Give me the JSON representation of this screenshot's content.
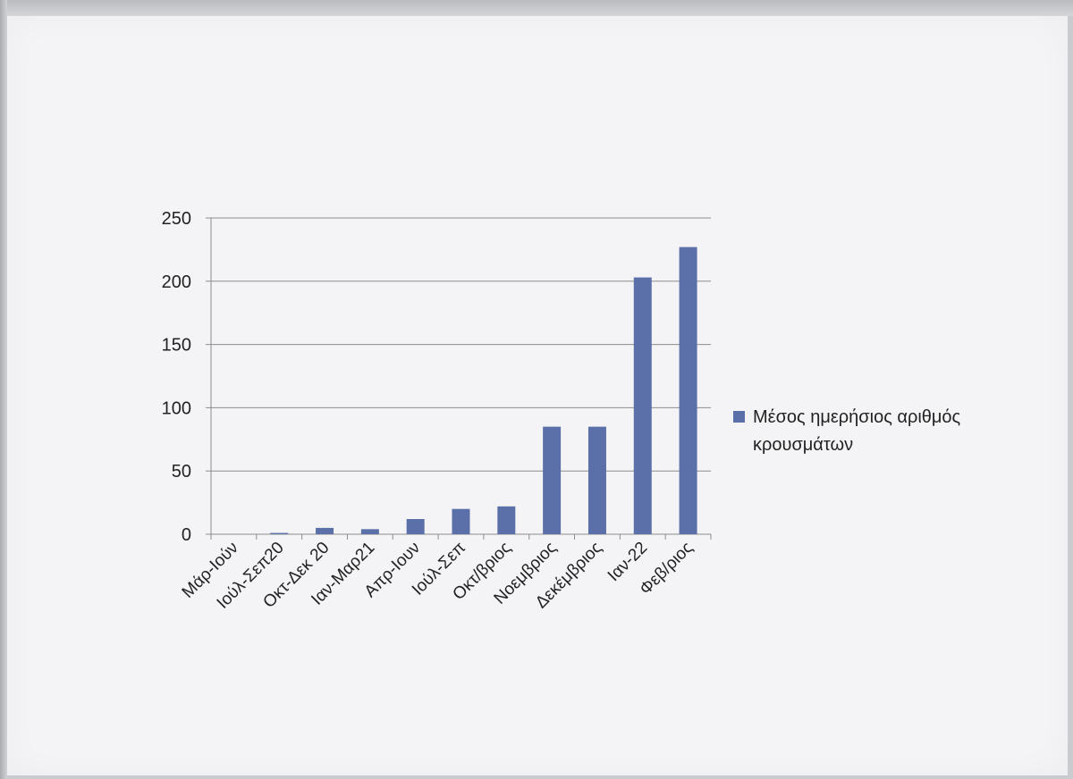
{
  "colors": {
    "bar": "#5b6fa8",
    "grid": "#8c8c8c",
    "paper": "#f4f4f6"
  },
  "chart_data": {
    "type": "bar",
    "title": "",
    "xlabel": "",
    "ylabel": "",
    "ylim": [
      0,
      250
    ],
    "yticks": [
      0,
      50,
      100,
      150,
      200,
      250
    ],
    "grid": true,
    "legend_position": "right",
    "categories": [
      "Μάρ-Ιούν",
      "Ιούλ-Σεπ20",
      "Οκτ-Δεκ 20",
      "Ιαν-Μαρ21",
      "Απρ-Ιουν",
      "Ιούλ-Σεπ",
      "Οκτ/βριος",
      "Νοεμβριος",
      "Δεκέμβριος",
      "Ιαν-22",
      "Φεβ/ριος"
    ],
    "series": [
      {
        "name": "Μέσος ημερήσιος αριθμός κρουσμάτων",
        "values": [
          0,
          1,
          5,
          4,
          12,
          20,
          22,
          85,
          85,
          203,
          227
        ]
      }
    ]
  }
}
